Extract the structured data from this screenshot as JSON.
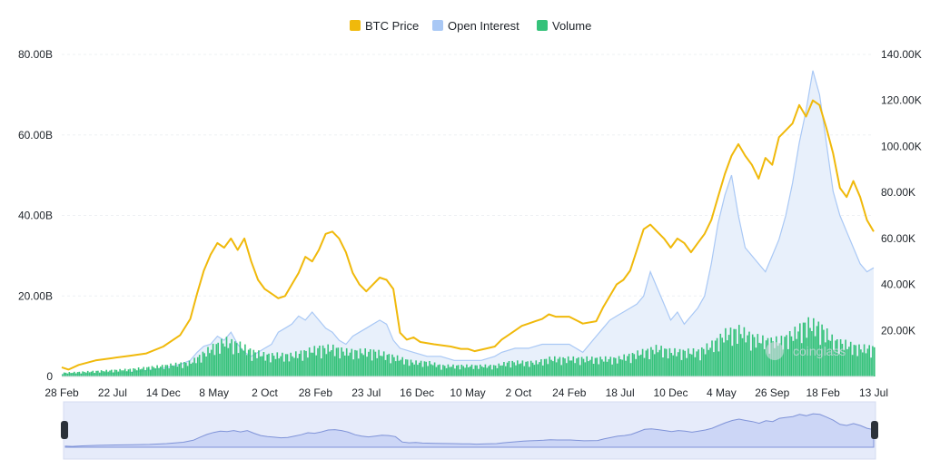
{
  "legend": [
    {
      "label": "BTC Price",
      "color": "#f0b90b"
    },
    {
      "label": "Open Interest",
      "color": "#a9c8f5"
    },
    {
      "label": "Volume",
      "color": "#35c27a"
    }
  ],
  "watermark": "coinglass",
  "chart_data": {
    "type": "line",
    "legend_position": "top-center",
    "grid": true,
    "x_tick_labels": [
      "28 Feb",
      "22 Jul",
      "14 Dec",
      "8 May",
      "2 Oct",
      "28 Feb",
      "23 Jul",
      "16 Dec",
      "10 May",
      "2 Oct",
      "24 Feb",
      "18 Jul",
      "10 Dec",
      "4 May",
      "26 Sep",
      "18 Feb",
      "13 Jul"
    ],
    "left_axis": {
      "ticks": [
        "0",
        "20.00B",
        "40.00B",
        "60.00B",
        "80.00B"
      ],
      "range": [
        0,
        80
      ]
    },
    "right_axis": {
      "ticks": [
        "20.00K",
        "40.00K",
        "60.00K",
        "80.00K",
        "100.00K",
        "120.00K",
        "140.00K"
      ],
      "range": [
        0,
        140
      ]
    },
    "x_index_range": [
      0,
      240
    ],
    "series": [
      {
        "name": "BTC Price",
        "axis": "right",
        "style": "line",
        "color": "#f0b90b",
        "points": [
          [
            0,
            4
          ],
          [
            2,
            3
          ],
          [
            5,
            5
          ],
          [
            10,
            7
          ],
          [
            15,
            8
          ],
          [
            20,
            9
          ],
          [
            25,
            10
          ],
          [
            30,
            13
          ],
          [
            35,
            18
          ],
          [
            38,
            25
          ],
          [
            40,
            36
          ],
          [
            42,
            46
          ],
          [
            44,
            53
          ],
          [
            46,
            58
          ],
          [
            48,
            56
          ],
          [
            50,
            60
          ],
          [
            52,
            55
          ],
          [
            54,
            60
          ],
          [
            56,
            50
          ],
          [
            58,
            42
          ],
          [
            60,
            38
          ],
          [
            62,
            36
          ],
          [
            64,
            34
          ],
          [
            66,
            35
          ],
          [
            68,
            40
          ],
          [
            70,
            45
          ],
          [
            72,
            52
          ],
          [
            74,
            50
          ],
          [
            76,
            55
          ],
          [
            78,
            62
          ],
          [
            80,
            63
          ],
          [
            82,
            60
          ],
          [
            84,
            54
          ],
          [
            86,
            45
          ],
          [
            88,
            40
          ],
          [
            90,
            37
          ],
          [
            92,
            40
          ],
          [
            94,
            43
          ],
          [
            96,
            42
          ],
          [
            98,
            38
          ],
          [
            100,
            19
          ],
          [
            102,
            16
          ],
          [
            104,
            17
          ],
          [
            106,
            15
          ],
          [
            110,
            14
          ],
          [
            115,
            13
          ],
          [
            118,
            12
          ],
          [
            120,
            12
          ],
          [
            122,
            11
          ],
          [
            125,
            12
          ],
          [
            128,
            13
          ],
          [
            130,
            16
          ],
          [
            132,
            18
          ],
          [
            134,
            20
          ],
          [
            136,
            22
          ],
          [
            138,
            23
          ],
          [
            140,
            24
          ],
          [
            142,
            25
          ],
          [
            144,
            27
          ],
          [
            146,
            26
          ],
          [
            150,
            26
          ],
          [
            154,
            23
          ],
          [
            158,
            24
          ],
          [
            160,
            30
          ],
          [
            162,
            35
          ],
          [
            164,
            40
          ],
          [
            166,
            42
          ],
          [
            168,
            46
          ],
          [
            170,
            55
          ],
          [
            172,
            64
          ],
          [
            174,
            66
          ],
          [
            176,
            63
          ],
          [
            178,
            60
          ],
          [
            180,
            56
          ],
          [
            182,
            60
          ],
          [
            184,
            58
          ],
          [
            186,
            54
          ],
          [
            188,
            58
          ],
          [
            190,
            62
          ],
          [
            192,
            68
          ],
          [
            194,
            78
          ],
          [
            196,
            88
          ],
          [
            198,
            96
          ],
          [
            200,
            101
          ],
          [
            202,
            96
          ],
          [
            204,
            92
          ],
          [
            206,
            86
          ],
          [
            208,
            95
          ],
          [
            210,
            92
          ],
          [
            212,
            104
          ],
          [
            214,
            107
          ],
          [
            216,
            110
          ],
          [
            218,
            118
          ],
          [
            220,
            113
          ],
          [
            222,
            120
          ],
          [
            224,
            118
          ],
          [
            226,
            108
          ],
          [
            228,
            97
          ],
          [
            230,
            82
          ],
          [
            232,
            78
          ],
          [
            234,
            85
          ],
          [
            236,
            78
          ],
          [
            238,
            68
          ],
          [
            240,
            63
          ],
          [
            242,
            64
          ],
          [
            244,
            68
          ],
          [
            246,
            72
          ],
          [
            248,
            76
          ],
          [
            250,
            72
          ],
          [
            252,
            62
          ],
          [
            254,
            56
          ],
          [
            256,
            61
          ]
        ]
      },
      {
        "name": "Open Interest",
        "axis": "left",
        "style": "area",
        "color": "#a9c8f5",
        "points": [
          [
            0,
            0.5
          ],
          [
            10,
            0.6
          ],
          [
            20,
            1
          ],
          [
            30,
            2
          ],
          [
            35,
            3
          ],
          [
            38,
            4
          ],
          [
            40,
            6
          ],
          [
            42,
            7.5
          ],
          [
            44,
            8
          ],
          [
            46,
            10
          ],
          [
            48,
            9
          ],
          [
            50,
            11
          ],
          [
            52,
            8
          ],
          [
            54,
            6
          ],
          [
            56,
            5
          ],
          [
            58,
            6
          ],
          [
            60,
            7
          ],
          [
            62,
            8
          ],
          [
            64,
            11
          ],
          [
            66,
            12
          ],
          [
            68,
            13
          ],
          [
            70,
            15
          ],
          [
            72,
            14
          ],
          [
            74,
            16
          ],
          [
            76,
            14
          ],
          [
            78,
            12
          ],
          [
            80,
            11
          ],
          [
            82,
            9
          ],
          [
            84,
            8
          ],
          [
            86,
            10
          ],
          [
            88,
            11
          ],
          [
            90,
            12
          ],
          [
            92,
            13
          ],
          [
            94,
            14
          ],
          [
            96,
            13
          ],
          [
            98,
            9
          ],
          [
            100,
            7
          ],
          [
            104,
            6
          ],
          [
            108,
            5
          ],
          [
            112,
            5
          ],
          [
            116,
            4
          ],
          [
            120,
            4
          ],
          [
            124,
            4
          ],
          [
            128,
            5
          ],
          [
            130,
            6
          ],
          [
            134,
            7
          ],
          [
            138,
            7
          ],
          [
            142,
            8
          ],
          [
            146,
            8
          ],
          [
            150,
            8
          ],
          [
            152,
            7
          ],
          [
            154,
            6
          ],
          [
            156,
            8
          ],
          [
            158,
            10
          ],
          [
            160,
            12
          ],
          [
            162,
            14
          ],
          [
            164,
            15
          ],
          [
            166,
            16
          ],
          [
            168,
            17
          ],
          [
            170,
            18
          ],
          [
            172,
            20
          ],
          [
            174,
            26
          ],
          [
            176,
            22
          ],
          [
            178,
            18
          ],
          [
            180,
            14
          ],
          [
            182,
            16
          ],
          [
            184,
            13
          ],
          [
            186,
            15
          ],
          [
            188,
            17
          ],
          [
            190,
            20
          ],
          [
            192,
            28
          ],
          [
            194,
            38
          ],
          [
            196,
            45
          ],
          [
            198,
            50
          ],
          [
            200,
            40
          ],
          [
            202,
            32
          ],
          [
            204,
            30
          ],
          [
            206,
            28
          ],
          [
            208,
            26
          ],
          [
            210,
            30
          ],
          [
            212,
            34
          ],
          [
            214,
            40
          ],
          [
            216,
            48
          ],
          [
            218,
            58
          ],
          [
            220,
            66
          ],
          [
            222,
            76
          ],
          [
            224,
            70
          ],
          [
            226,
            58
          ],
          [
            228,
            46
          ],
          [
            230,
            40
          ],
          [
            232,
            36
          ],
          [
            234,
            32
          ],
          [
            236,
            28
          ],
          [
            238,
            26
          ],
          [
            240,
            27
          ],
          [
            242,
            28
          ],
          [
            244,
            30
          ],
          [
            246,
            34
          ],
          [
            248,
            36
          ],
          [
            250,
            38
          ],
          [
            252,
            35
          ],
          [
            254,
            33
          ],
          [
            256,
            32
          ]
        ]
      },
      {
        "name": "Volume",
        "axis": "left",
        "style": "bars",
        "color": "#35c27a",
        "points": [
          [
            0,
            1
          ],
          [
            10,
            1.5
          ],
          [
            20,
            2
          ],
          [
            30,
            3
          ],
          [
            38,
            4
          ],
          [
            44,
            8
          ],
          [
            48,
            10
          ],
          [
            52,
            9
          ],
          [
            56,
            7
          ],
          [
            60,
            6
          ],
          [
            64,
            6
          ],
          [
            68,
            6
          ],
          [
            72,
            7
          ],
          [
            76,
            8
          ],
          [
            80,
            8
          ],
          [
            84,
            7
          ],
          [
            88,
            7
          ],
          [
            92,
            7
          ],
          [
            96,
            6
          ],
          [
            100,
            5
          ],
          [
            104,
            4
          ],
          [
            108,
            4
          ],
          [
            112,
            3
          ],
          [
            116,
            3
          ],
          [
            120,
            3
          ],
          [
            124,
            3
          ],
          [
            128,
            3
          ],
          [
            132,
            4
          ],
          [
            136,
            4
          ],
          [
            140,
            4
          ],
          [
            144,
            5
          ],
          [
            148,
            5
          ],
          [
            152,
            5
          ],
          [
            156,
            5
          ],
          [
            160,
            5
          ],
          [
            164,
            5
          ],
          [
            168,
            6
          ],
          [
            172,
            7
          ],
          [
            176,
            8
          ],
          [
            180,
            7
          ],
          [
            184,
            7
          ],
          [
            188,
            7
          ],
          [
            192,
            9
          ],
          [
            196,
            12
          ],
          [
            200,
            13
          ],
          [
            204,
            11
          ],
          [
            208,
            10
          ],
          [
            212,
            10
          ],
          [
            216,
            12
          ],
          [
            220,
            15
          ],
          [
            224,
            14
          ],
          [
            228,
            10
          ],
          [
            232,
            9
          ],
          [
            236,
            8
          ],
          [
            240,
            8
          ],
          [
            244,
            8
          ],
          [
            248,
            8
          ],
          [
            252,
            7
          ],
          [
            256,
            7
          ]
        ]
      }
    ]
  }
}
